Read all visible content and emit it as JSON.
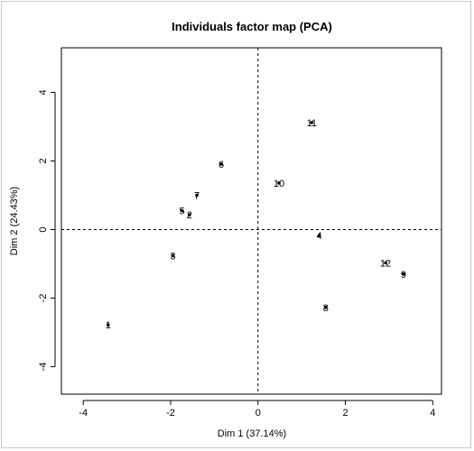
{
  "chart_data": {
    "type": "scatter",
    "title": "Individuals factor map (PCA)",
    "xlabel": "Dim 1 (37.14%)",
    "ylabel": "Dim 2 (24.43%)",
    "xlim": [
      -4.5,
      4.2
    ],
    "ylim": [
      -4.8,
      5.3
    ],
    "xticks": [
      -4,
      -2,
      0,
      2,
      4
    ],
    "yticks": [
      -4,
      -2,
      0,
      2,
      4
    ],
    "reference_lines": {
      "x": 0,
      "y": 0,
      "style": "dashed"
    },
    "grid": false,
    "points": [
      {
        "label": "1",
        "x": -3.43,
        "y": -2.78
      },
      {
        "label": "2",
        "x": -1.57,
        "y": 0.43
      },
      {
        "label": "3",
        "x": -1.95,
        "y": -0.76
      },
      {
        "label": "4",
        "x": 1.4,
        "y": -0.17
      },
      {
        "label": "5",
        "x": -1.74,
        "y": 0.55
      },
      {
        "label": "6",
        "x": -0.84,
        "y": 1.91
      },
      {
        "label": "7",
        "x": -1.4,
        "y": 1.0
      },
      {
        "label": "8",
        "x": 1.55,
        "y": -2.27
      },
      {
        "label": "9",
        "x": 3.33,
        "y": -1.3
      },
      {
        "label": "10",
        "x": 0.48,
        "y": 1.36
      },
      {
        "label": "11",
        "x": 1.23,
        "y": 3.12
      },
      {
        "label": "12",
        "x": 2.92,
        "y": -0.97
      }
    ]
  }
}
